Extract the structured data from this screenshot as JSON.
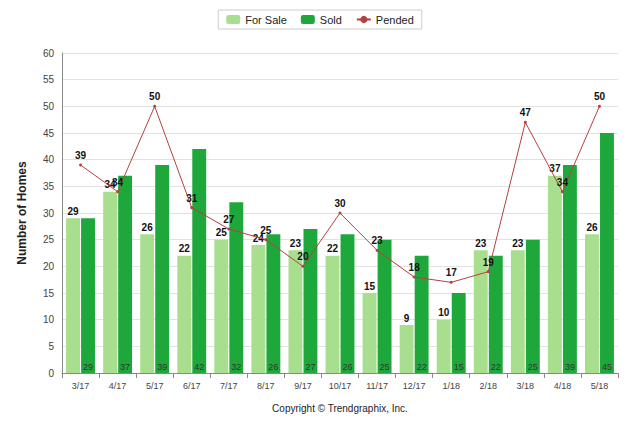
{
  "chart_data": {
    "type": "bar",
    "y_label": "Number of Homes",
    "x_label": "Copyright © Trendgraphix, Inc.",
    "categories": [
      "3/17",
      "4/17",
      "5/17",
      "6/17",
      "7/17",
      "8/17",
      "9/17",
      "10/17",
      "11/17",
      "12/17",
      "1/18",
      "2/18",
      "3/18",
      "4/18",
      "5/18"
    ],
    "series": [
      {
        "name": "For Sale",
        "type": "bar",
        "color": "#a8df8e",
        "values": [
          29,
          34,
          26,
          22,
          25,
          24,
          23,
          22,
          15,
          9,
          10,
          23,
          23,
          37,
          26
        ]
      },
      {
        "name": "Sold",
        "type": "bar",
        "color": "#1ea83c",
        "values": [
          29,
          37,
          39,
          42,
          32,
          26,
          27,
          26,
          25,
          22,
          15,
          22,
          25,
          39,
          45
        ]
      },
      {
        "name": "Pended",
        "type": "line",
        "color": "#b5413f",
        "marker": "circle",
        "values": [
          39,
          34,
          50,
          31,
          27,
          25,
          20,
          30,
          23,
          18,
          17,
          19,
          47,
          34,
          50
        ]
      }
    ],
    "ylim": [
      0,
      60
    ],
    "yticks": [
      0,
      5,
      10,
      15,
      20,
      25,
      30,
      35,
      40,
      45,
      50,
      55,
      60
    ],
    "grid": true,
    "legend": "top",
    "data_labels": true
  }
}
